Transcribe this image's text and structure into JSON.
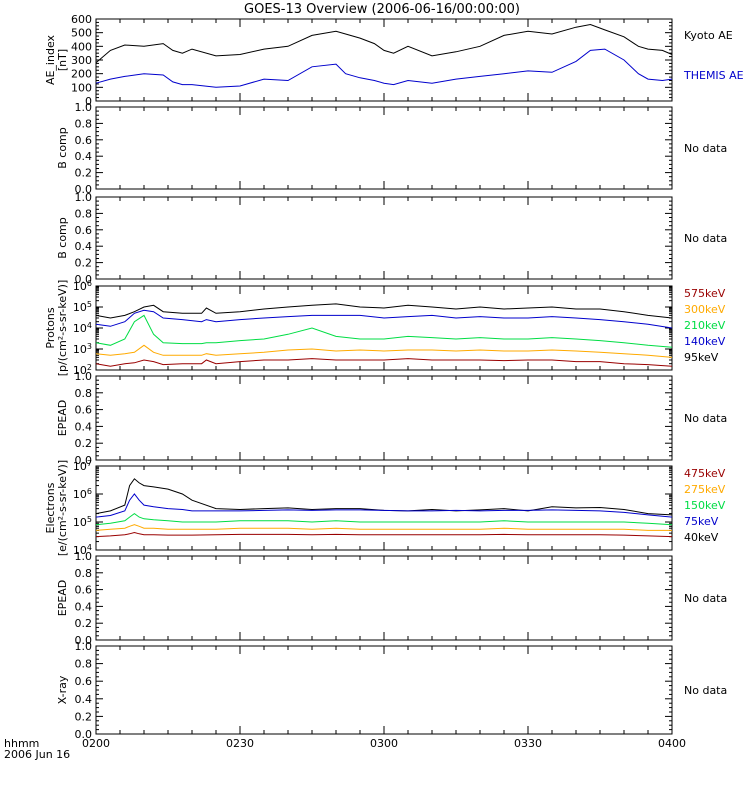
{
  "title": "GOES-13 Overview (2006-06-16/00:00:00)",
  "x_axis": {
    "ticks": [
      "0200",
      "0230",
      "0300",
      "0330",
      "0400"
    ],
    "range": [
      0,
      120
    ],
    "corner_label_1": "hhmm",
    "corner_label_2": "2006 Jun 16"
  },
  "colors": {
    "black": "#000000",
    "blue": "#0000cc",
    "green": "#00dd44",
    "orange": "#ffaa00",
    "darkred": "#990000"
  },
  "chart_data": [
    {
      "type": "line",
      "ylabel": [
        "AE_index",
        "[nT]"
      ],
      "ylim": [
        0,
        600
      ],
      "yticks": [
        "0",
        "100",
        "200",
        "300",
        "400",
        "500",
        "600"
      ],
      "legend": [
        {
          "name": "Kyoto AE",
          "color": "black"
        },
        {
          "name": "THEMIS AE",
          "color": "blue"
        }
      ],
      "x": [
        0,
        3,
        6,
        10,
        14,
        16,
        18,
        20,
        25,
        30,
        35,
        40,
        45,
        50,
        52,
        55,
        58,
        60,
        62,
        65,
        70,
        75,
        80,
        85,
        90,
        95,
        100,
        103,
        106,
        110,
        113,
        115,
        118,
        120
      ],
      "series": [
        {
          "name": "Kyoto AE",
          "color": "black",
          "values": [
            280,
            370,
            410,
            400,
            420,
            370,
            350,
            380,
            330,
            340,
            380,
            400,
            480,
            510,
            490,
            460,
            420,
            370,
            350,
            400,
            330,
            360,
            400,
            480,
            510,
            490,
            540,
            560,
            520,
            470,
            400,
            380,
            370,
            340
          ]
        },
        {
          "name": "THEMIS AE",
          "color": "blue",
          "values": [
            130,
            160,
            180,
            200,
            190,
            140,
            120,
            120,
            100,
            110,
            160,
            150,
            250,
            270,
            200,
            170,
            150,
            130,
            120,
            150,
            130,
            160,
            180,
            200,
            220,
            210,
            290,
            370,
            380,
            300,
            200,
            160,
            150,
            160
          ]
        }
      ]
    },
    {
      "type": "line",
      "ylabel": [
        "B comp"
      ],
      "ylim": [
        0,
        1
      ],
      "yticks": [
        "0.0",
        "0.2",
        "0.4",
        "0.6",
        "0.8",
        "1.0"
      ],
      "note": "No data"
    },
    {
      "type": "line",
      "ylabel": [
        "B comp"
      ],
      "ylim": [
        0,
        1
      ],
      "yticks": [
        "0.0",
        "0.2",
        "0.4",
        "0.6",
        "0.8",
        "1.0"
      ],
      "note": "No data"
    },
    {
      "type": "line",
      "scale": "log",
      "ylabel": [
        "Protons",
        "[p/(cm²-s-sr-keV)]"
      ],
      "ylim_exp": [
        2,
        6
      ],
      "yticks": [
        {
          "base": "10",
          "exp": "2"
        },
        {
          "base": "10",
          "exp": "3"
        },
        {
          "base": "10",
          "exp": "4"
        },
        {
          "base": "10",
          "exp": "5"
        },
        {
          "base": "10",
          "exp": "6"
        }
      ],
      "legend": [
        {
          "name": "575keV",
          "color": "darkred"
        },
        {
          "name": "300keV",
          "color": "orange"
        },
        {
          "name": "210keV",
          "color": "green"
        },
        {
          "name": "140keV",
          "color": "blue"
        },
        {
          "name": "95keV",
          "color": "black"
        }
      ],
      "x": [
        0,
        3,
        6,
        8,
        10,
        12,
        14,
        18,
        22,
        23,
        25,
        30,
        35,
        40,
        45,
        50,
        55,
        60,
        65,
        70,
        75,
        80,
        85,
        90,
        95,
        100,
        105,
        110,
        115,
        120
      ],
      "series": [
        {
          "name": "95keV",
          "color": "black",
          "values": [
            40000,
            30000,
            40000,
            60000,
            100000,
            120000,
            60000,
            50000,
            50000,
            90000,
            50000,
            60000,
            80000,
            100000,
            120000,
            140000,
            100000,
            90000,
            120000,
            100000,
            80000,
            100000,
            80000,
            90000,
            100000,
            80000,
            80000,
            60000,
            40000,
            30000
          ]
        },
        {
          "name": "140keV",
          "color": "blue",
          "values": [
            15000,
            12000,
            20000,
            50000,
            70000,
            60000,
            30000,
            25000,
            20000,
            25000,
            20000,
            25000,
            30000,
            35000,
            40000,
            40000,
            40000,
            30000,
            35000,
            40000,
            30000,
            35000,
            30000,
            30000,
            35000,
            30000,
            25000,
            20000,
            15000,
            10000
          ]
        },
        {
          "name": "210keV",
          "color": "green",
          "values": [
            2000,
            1500,
            3000,
            20000,
            40000,
            5000,
            2000,
            1800,
            1800,
            2000,
            2000,
            2500,
            3000,
            5000,
            10000,
            4000,
            3000,
            3000,
            4000,
            3500,
            3000,
            3500,
            3000,
            3000,
            3500,
            3000,
            2500,
            2000,
            1500,
            1200
          ]
        },
        {
          "name": "300keV",
          "color": "orange",
          "values": [
            600,
            500,
            600,
            700,
            1500,
            700,
            500,
            500,
            500,
            600,
            500,
            600,
            700,
            900,
            1000,
            800,
            900,
            800,
            900,
            900,
            800,
            900,
            800,
            800,
            900,
            800,
            700,
            600,
            500,
            400
          ]
        },
        {
          "name": "575keV",
          "color": "darkred",
          "values": [
            200,
            150,
            200,
            220,
            300,
            250,
            180,
            200,
            200,
            300,
            200,
            250,
            300,
            300,
            350,
            300,
            300,
            300,
            350,
            300,
            300,
            300,
            280,
            300,
            300,
            250,
            250,
            200,
            180,
            150
          ]
        }
      ]
    },
    {
      "type": "line",
      "ylabel": [
        "EPEAD"
      ],
      "ylim": [
        0,
        1
      ],
      "yticks": [
        "0.0",
        "0.2",
        "0.4",
        "0.6",
        "0.8",
        "1.0"
      ],
      "note": "No data"
    },
    {
      "type": "line",
      "scale": "log",
      "ylabel": [
        "Electrons",
        "[e/(cm²-s-sr-keV)]"
      ],
      "ylim_exp": [
        4,
        7
      ],
      "yticks": [
        {
          "base": "10",
          "exp": "4"
        },
        {
          "base": "10",
          "exp": "5"
        },
        {
          "base": "10",
          "exp": "6"
        },
        {
          "base": "10",
          "exp": "7"
        }
      ],
      "legend": [
        {
          "name": "475keV",
          "color": "darkred"
        },
        {
          "name": "275keV",
          "color": "orange"
        },
        {
          "name": "150keV",
          "color": "green"
        },
        {
          "name": "75keV",
          "color": "blue"
        },
        {
          "name": "40keV",
          "color": "black"
        }
      ],
      "x": [
        0,
        3,
        6,
        7,
        8,
        9,
        10,
        12,
        15,
        18,
        20,
        25,
        30,
        35,
        40,
        45,
        50,
        55,
        60,
        65,
        70,
        75,
        80,
        85,
        90,
        95,
        100,
        105,
        110,
        115,
        120
      ],
      "series": [
        {
          "name": "40keV",
          "color": "black",
          "values": [
            200000,
            250000,
            400000,
            2000000,
            3500000,
            2500000,
            2000000,
            1800000,
            1500000,
            1000000,
            600000,
            300000,
            280000,
            300000,
            320000,
            280000,
            300000,
            300000,
            260000,
            250000,
            280000,
            250000,
            270000,
            300000,
            250000,
            350000,
            320000,
            330000,
            280000,
            200000,
            180000
          ]
        },
        {
          "name": "75keV",
          "color": "blue",
          "values": [
            150000,
            170000,
            250000,
            600000,
            1000000,
            600000,
            400000,
            350000,
            300000,
            280000,
            250000,
            250000,
            250000,
            260000,
            270000,
            260000,
            270000,
            270000,
            260000,
            250000,
            250000,
            260000,
            250000,
            260000,
            260000,
            270000,
            260000,
            250000,
            220000,
            180000,
            150000
          ]
        },
        {
          "name": "150keV",
          "color": "green",
          "values": [
            80000,
            90000,
            110000,
            150000,
            200000,
            150000,
            130000,
            120000,
            110000,
            100000,
            100000,
            100000,
            110000,
            110000,
            110000,
            100000,
            110000,
            100000,
            100000,
            100000,
            100000,
            100000,
            100000,
            110000,
            100000,
            100000,
            100000,
            100000,
            100000,
            90000,
            80000
          ]
        },
        {
          "name": "275keV",
          "color": "orange",
          "values": [
            50000,
            55000,
            60000,
            70000,
            80000,
            70000,
            60000,
            60000,
            55000,
            55000,
            55000,
            55000,
            60000,
            60000,
            60000,
            55000,
            60000,
            55000,
            55000,
            55000,
            55000,
            55000,
            55000,
            60000,
            55000,
            55000,
            55000,
            55000,
            55000,
            50000,
            50000
          ]
        },
        {
          "name": "475keV",
          "color": "darkred",
          "values": [
            30000,
            32000,
            35000,
            38000,
            42000,
            38000,
            35000,
            35000,
            34000,
            34000,
            34000,
            35000,
            36000,
            36000,
            36000,
            35000,
            36000,
            35000,
            35000,
            35000,
            35000,
            35000,
            35000,
            36000,
            35000,
            35000,
            35000,
            35000,
            34000,
            32000,
            30000
          ]
        }
      ]
    },
    {
      "type": "line",
      "ylabel": [
        "EPEAD"
      ],
      "ylim": [
        0,
        1
      ],
      "yticks": [
        "0.0",
        "0.2",
        "0.4",
        "0.6",
        "0.8",
        "1.0"
      ],
      "note": "No data"
    },
    {
      "type": "line",
      "ylabel": [
        "X-ray"
      ],
      "ylim": [
        0,
        1
      ],
      "yticks": [
        "0.0",
        "0.2",
        "0.4",
        "0.6",
        "0.8",
        "1.0"
      ],
      "note": "No data"
    }
  ]
}
